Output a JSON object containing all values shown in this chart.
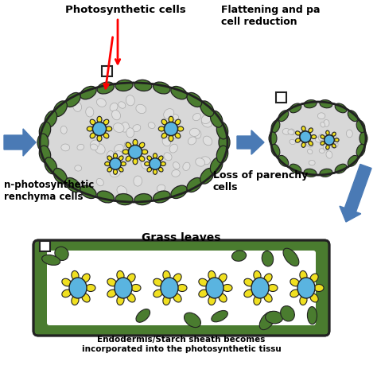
{
  "bg_color": "#ffffff",
  "dark_green": "#4a7c2f",
  "yellow": "#f0e020",
  "blue_center": "#5ab4e0",
  "light_gray": "#d8d8d8",
  "arrow_blue": "#4a7ab5",
  "outline_color": "#222222",
  "title_top_left": "Photosynthetic cells",
  "label_bottom_left": "n-photosynthetic\nrenchyma cells",
  "label_top_right": "Flattening and pa\ncell reduction",
  "label_mid_right": "Loss of parenchy\ncells",
  "label_grass": "Grass leaves",
  "label_bottom": "Endodermis/Starch sheath becomes\nincorporated into the photosynthetic tissu"
}
